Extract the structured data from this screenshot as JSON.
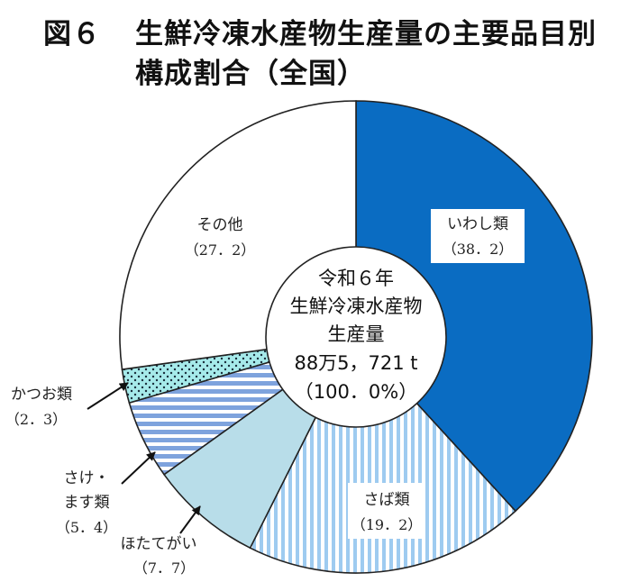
{
  "title": {
    "figure_no": "図６",
    "line1": "生鮮冷凍水産物生産量の主要品目別",
    "line2": "構成割合（全国）"
  },
  "center": {
    "line1": "令和６年",
    "line2": "生鮮冷凍水産物",
    "line3": "生産量",
    "line4": "88万5，721 t",
    "line5": "（100．0%）"
  },
  "chart_data": {
    "type": "pie",
    "title": "生鮮冷凍水産物生産量の主要品目別構成割合（全国）",
    "unit": "%",
    "slices": [
      {
        "name": "いわし類",
        "value": 38.2,
        "label": "いわし類",
        "value_label": "（38．2）",
        "fill": "#0a6cc2",
        "pattern": "solid"
      },
      {
        "name": "さば類",
        "value": 19.2,
        "label": "さば類",
        "value_label": "（19．2）",
        "fill": "#9ecbf0",
        "pattern": "vstripe"
      },
      {
        "name": "ほたてがい",
        "value": 7.7,
        "label": "ほたてがい",
        "value_label": "（7．7）",
        "fill": "#b8dde9",
        "pattern": "solid"
      },
      {
        "name": "さけ・ます類",
        "value": 5.4,
        "label": "さけ・ます類",
        "value_label": "（5．4）",
        "fill": "#7ea3dd",
        "pattern": "hstripe"
      },
      {
        "name": "かつお類",
        "value": 2.3,
        "label": "かつお類",
        "value_label": "（2．3）",
        "fill": "#a6eaea",
        "pattern": "dots"
      },
      {
        "name": "その他",
        "value": 27.2,
        "label": "その他",
        "value_label": "（27．2）",
        "fill": "#ffffff",
        "pattern": "solid"
      }
    ]
  }
}
